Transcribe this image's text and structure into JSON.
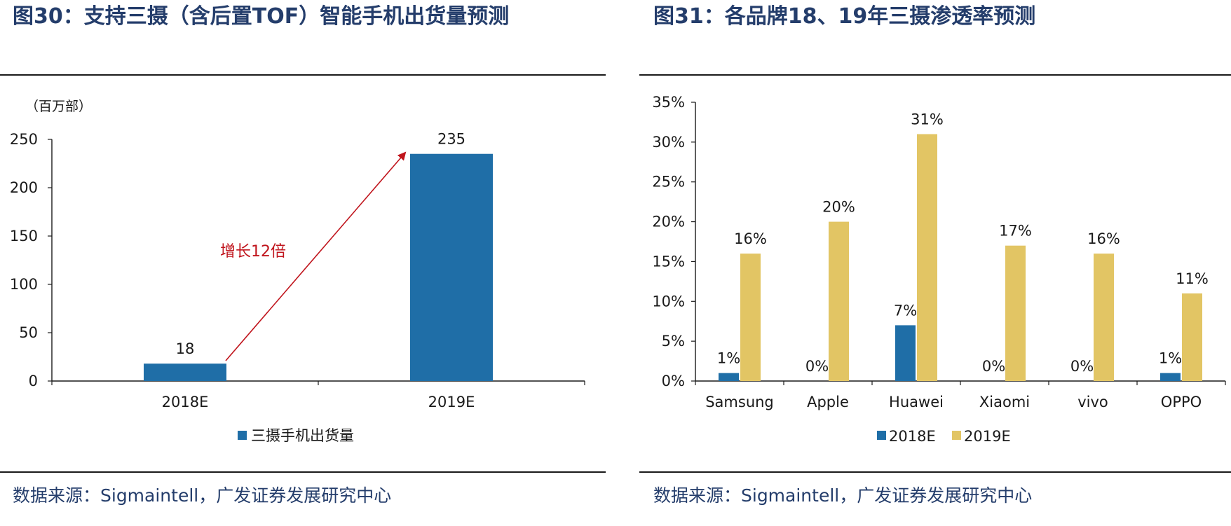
{
  "left_panel": {
    "title": "图30：支持三摄（含后置TOF）智能手机出货量预测",
    "source": "数据来源：Sigmaintell，广发证券发展研究中心",
    "unit_label": "（百万部）",
    "annotation": "增长12倍"
  },
  "right_panel": {
    "title": "图31：各品牌18、19年三摄渗透率预测",
    "source": "数据来源：Sigmaintell，广发证券发展研究中心"
  },
  "colors": {
    "blue": "#1f6ea7",
    "gold": "#e2c564",
    "arrow": "#c0141c",
    "title": "#243d6b"
  },
  "chart_data": [
    {
      "type": "bar",
      "categories": [
        "2018E",
        "2019E"
      ],
      "series": [
        {
          "name": "三摄手机出货量",
          "values": [
            18,
            235
          ],
          "labels": [
            "18",
            "235"
          ]
        }
      ],
      "ylim": [
        0,
        250
      ],
      "yticks": [
        "0",
        "50",
        "100",
        "150",
        "200",
        "250"
      ],
      "grid": false,
      "legend": "bottom"
    },
    {
      "type": "bar",
      "categories": [
        "Samsung",
        "Apple",
        "Huawei",
        "Xiaomi",
        "vivo",
        "OPPO"
      ],
      "series": [
        {
          "name": "2018E",
          "values": [
            1,
            0,
            7,
            0,
            0,
            1
          ],
          "labels": [
            "1%",
            "0%",
            "7%",
            "0%",
            "0%",
            "1%"
          ]
        },
        {
          "name": "2019E",
          "values": [
            16,
            20,
            31,
            17,
            16,
            11
          ],
          "labels": [
            "16%",
            "20%",
            "31%",
            "17%",
            "16%",
            "11%"
          ]
        }
      ],
      "ylim": [
        0,
        35
      ],
      "yticks": [
        "0%",
        "5%",
        "10%",
        "15%",
        "20%",
        "25%",
        "30%",
        "35%"
      ],
      "grid": false,
      "legend": "bottom"
    }
  ]
}
